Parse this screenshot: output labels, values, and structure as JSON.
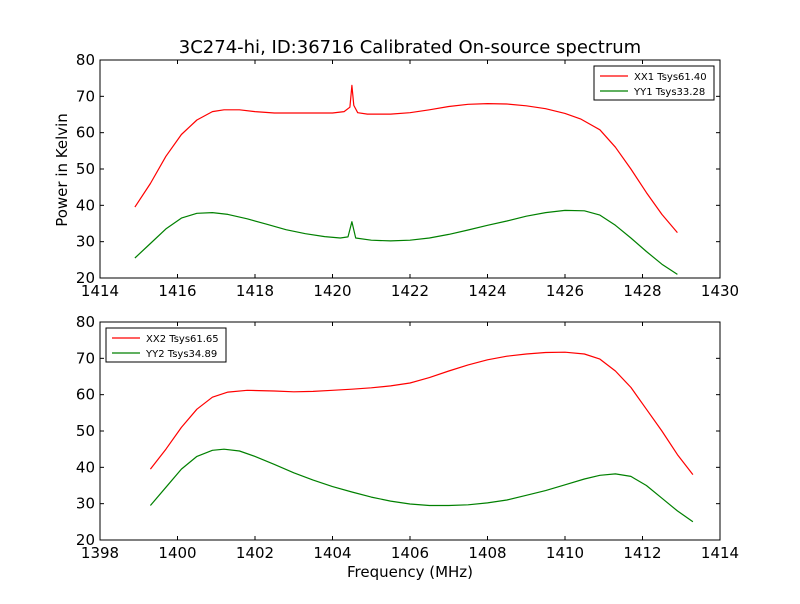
{
  "chart_data": [
    {
      "type": "line",
      "title": "3C274-hi, ID:36716 Calibrated On-source spectrum",
      "xlabel": "",
      "ylabel": "Power in Kelvin",
      "xlim": [
        1414,
        1430
      ],
      "ylim": [
        20,
        80
      ],
      "xticks": [
        1414,
        1416,
        1418,
        1420,
        1422,
        1424,
        1426,
        1428,
        1430
      ],
      "yticks": [
        20,
        30,
        40,
        50,
        60,
        70,
        80
      ],
      "grid": false,
      "legend": "top-right",
      "series": [
        {
          "name": "XX1 Tsys61.40",
          "color": "#ff0000",
          "x": [
            1414.9,
            1415.3,
            1415.7,
            1416.1,
            1416.5,
            1416.9,
            1417.2,
            1417.6,
            1418.0,
            1418.5,
            1419.0,
            1419.5,
            1420.0,
            1420.3,
            1420.45,
            1420.5,
            1420.55,
            1420.65,
            1420.9,
            1421.5,
            1422.0,
            1422.5,
            1423.0,
            1423.5,
            1424.0,
            1424.5,
            1425.0,
            1425.5,
            1426.0,
            1426.4,
            1426.9,
            1427.3,
            1427.7,
            1428.1,
            1428.5,
            1428.9
          ],
          "y": [
            39.5,
            46.0,
            53.5,
            59.5,
            63.5,
            65.8,
            66.3,
            66.3,
            65.8,
            65.4,
            65.4,
            65.4,
            65.4,
            65.8,
            67.0,
            73.0,
            67.5,
            65.5,
            65.1,
            65.1,
            65.5,
            66.3,
            67.2,
            67.8,
            68.0,
            67.9,
            67.4,
            66.6,
            65.3,
            63.8,
            60.8,
            56.0,
            50.0,
            43.5,
            37.5,
            32.5
          ]
        },
        {
          "name": "YY1 Tsys33.28",
          "color": "#008000",
          "x": [
            1414.9,
            1415.3,
            1415.7,
            1416.1,
            1416.5,
            1416.9,
            1417.3,
            1417.8,
            1418.3,
            1418.8,
            1419.3,
            1419.8,
            1420.2,
            1420.4,
            1420.5,
            1420.6,
            1421.0,
            1421.5,
            1422.0,
            1422.5,
            1423.0,
            1423.5,
            1424.0,
            1424.5,
            1425.0,
            1425.5,
            1426.0,
            1426.5,
            1426.9,
            1427.3,
            1427.7,
            1428.1,
            1428.5,
            1428.9
          ],
          "y": [
            25.5,
            29.5,
            33.5,
            36.5,
            37.8,
            38.0,
            37.5,
            36.3,
            34.8,
            33.3,
            32.2,
            31.4,
            31.0,
            31.3,
            35.5,
            31.0,
            30.4,
            30.2,
            30.4,
            31.0,
            32.0,
            33.2,
            34.5,
            35.7,
            37.0,
            38.0,
            38.6,
            38.5,
            37.3,
            34.5,
            31.0,
            27.3,
            23.8,
            21.0
          ]
        }
      ]
    },
    {
      "type": "line",
      "title": "",
      "xlabel": "Frequency (MHz)",
      "ylabel": "",
      "xlim": [
        1398,
        1414
      ],
      "ylim": [
        20,
        80
      ],
      "xticks": [
        1398,
        1400,
        1402,
        1404,
        1406,
        1408,
        1410,
        1412,
        1414
      ],
      "yticks": [
        20,
        30,
        40,
        50,
        60,
        70,
        80
      ],
      "grid": false,
      "legend": "top-left",
      "series": [
        {
          "name": "XX2 Tsys61.65",
          "color": "#ff0000",
          "x": [
            1399.3,
            1399.7,
            1400.1,
            1400.5,
            1400.9,
            1401.3,
            1401.8,
            1402.5,
            1403.0,
            1403.5,
            1404.0,
            1404.5,
            1405.0,
            1405.5,
            1406.0,
            1406.5,
            1407.0,
            1407.5,
            1408.0,
            1408.5,
            1409.0,
            1409.5,
            1410.0,
            1410.5,
            1410.9,
            1411.3,
            1411.7,
            1412.1,
            1412.5,
            1412.9,
            1413.3
          ],
          "y": [
            39.5,
            45.0,
            51.0,
            56.0,
            59.3,
            60.7,
            61.2,
            61.0,
            60.8,
            60.9,
            61.2,
            61.5,
            61.9,
            62.4,
            63.2,
            64.7,
            66.5,
            68.2,
            69.6,
            70.6,
            71.2,
            71.6,
            71.7,
            71.2,
            69.8,
            66.5,
            62.0,
            56.0,
            50.0,
            43.5,
            38.0
          ]
        },
        {
          "name": "YY2 Tsys34.89",
          "color": "#008000",
          "x": [
            1399.3,
            1399.7,
            1400.1,
            1400.5,
            1400.9,
            1401.2,
            1401.6,
            1402.0,
            1402.5,
            1403.0,
            1403.5,
            1404.0,
            1404.5,
            1405.0,
            1405.5,
            1406.0,
            1406.5,
            1407.0,
            1407.5,
            1408.0,
            1408.5,
            1409.0,
            1409.5,
            1410.0,
            1410.5,
            1410.9,
            1411.3,
            1411.7,
            1412.1,
            1412.5,
            1412.9,
            1413.3
          ],
          "y": [
            29.5,
            34.5,
            39.5,
            43.0,
            44.7,
            45.0,
            44.5,
            43.0,
            40.8,
            38.5,
            36.5,
            34.7,
            33.2,
            31.8,
            30.7,
            29.9,
            29.5,
            29.5,
            29.7,
            30.2,
            31.0,
            32.3,
            33.6,
            35.2,
            36.8,
            37.8,
            38.2,
            37.5,
            35.0,
            31.5,
            28.0,
            25.0
          ]
        }
      ]
    }
  ]
}
